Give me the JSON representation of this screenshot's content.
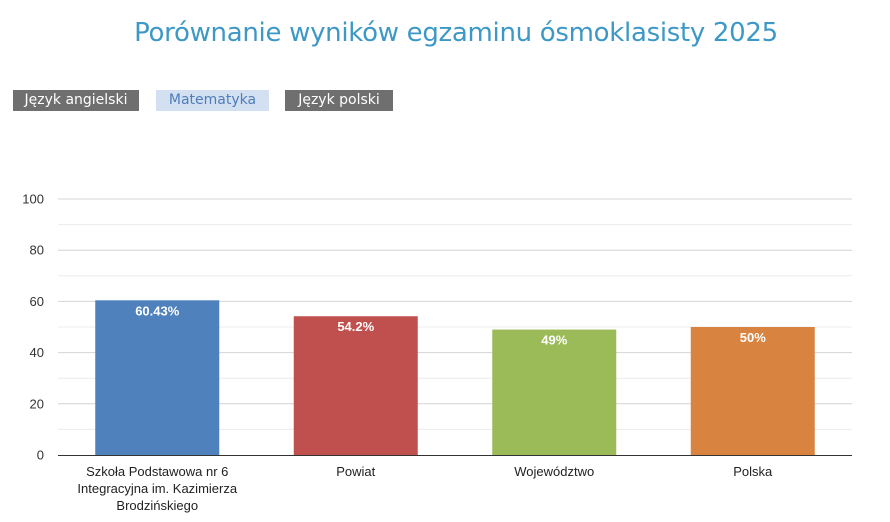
{
  "title": "Porównanie wyników egzaminu ósmoklasisty 2025",
  "tabs": [
    {
      "label": "Język angielski",
      "active": false
    },
    {
      "label": "Matematyka",
      "active": true
    },
    {
      "label": "Język polski",
      "active": false
    }
  ],
  "colors": {
    "title": "#3e98c6",
    "tab_inactive_bg": "#6f6f6f",
    "tab_active_bg": "#d2e0f1",
    "tab_active_text": "#4f7db8"
  },
  "chart_data": {
    "type": "bar",
    "categories": [
      [
        "Szkoła Podstawowa nr 6",
        "Integracyjna im. Kazimierza",
        "Brodzińskiego"
      ],
      [
        "Powiat"
      ],
      [
        "Województwo"
      ],
      [
        "Polska"
      ]
    ],
    "values": [
      60.43,
      54.2,
      49,
      50
    ],
    "data_labels": [
      "60.43%",
      "54.2%",
      "49%",
      "50%"
    ],
    "bar_colors": [
      "#4f81bd",
      "#c0504d",
      "#9bbb59",
      "#d98341"
    ],
    "ylim": [
      0,
      100
    ],
    "yticks": [
      0,
      20,
      40,
      60,
      80,
      100
    ],
    "grid": true,
    "legend": "none"
  }
}
